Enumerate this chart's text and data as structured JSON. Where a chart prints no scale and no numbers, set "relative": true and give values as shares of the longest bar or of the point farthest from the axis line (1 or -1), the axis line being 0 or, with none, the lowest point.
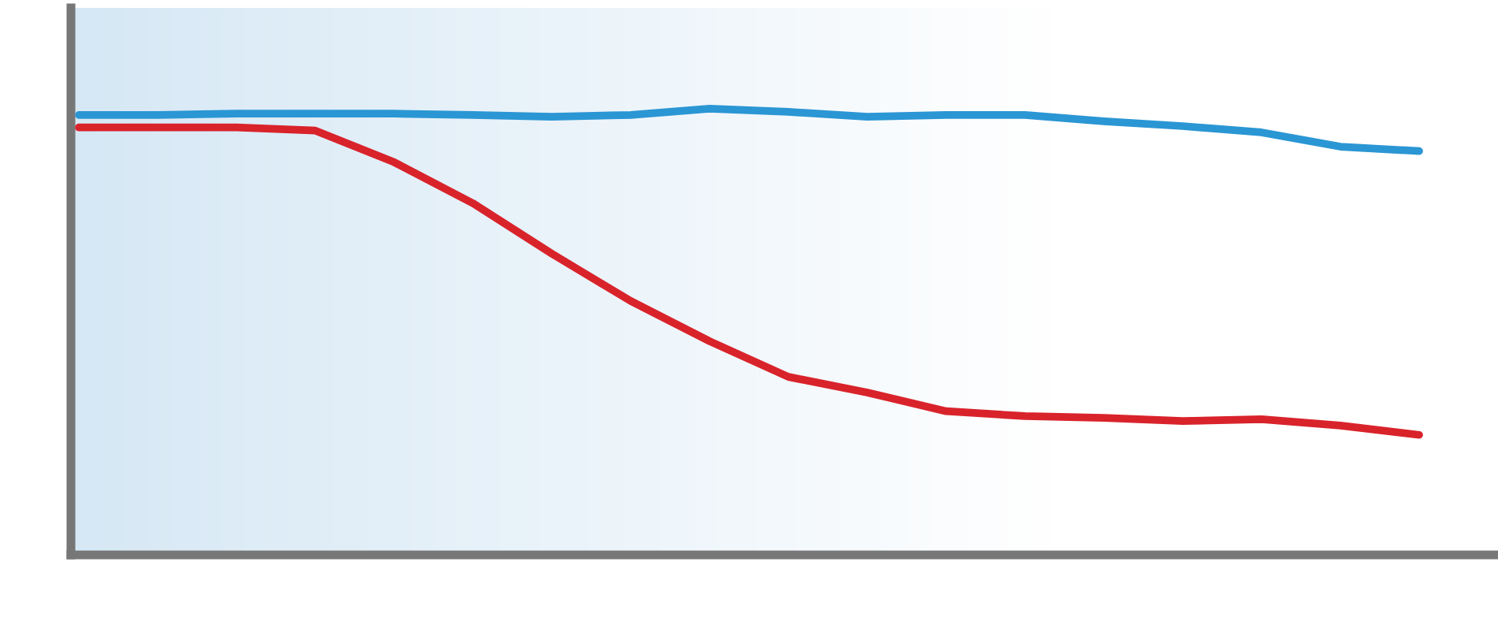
{
  "chart_data": {
    "type": "line",
    "relative": true,
    "legend": false,
    "marker": "none",
    "line_style": "solid",
    "categories": [
      null,
      null,
      null,
      null,
      null,
      null,
      null,
      null,
      null,
      null,
      null,
      null,
      null,
      null,
      null,
      null,
      null,
      null
    ],
    "series": [
      {
        "color": "#2b96d4",
        "values": [
          0.986,
          0.986,
          0.989,
          0.989,
          0.989,
          0.986,
          0.982,
          0.986,
          1,
          0.993,
          0.982,
          0.986,
          0.986,
          0.972,
          0.961,
          0.947,
          0.915,
          0.905
        ]
      },
      {
        "color": "#d9232b",
        "values": [
          0.958,
          0.958,
          0.958,
          0.951,
          0.88,
          0.788,
          0.675,
          0.569,
          0.479,
          0.399,
          0.364,
          0.322,
          0.311,
          0.307,
          0.3,
          0.304,
          0.29,
          0.269
        ]
      }
    ]
  }
}
